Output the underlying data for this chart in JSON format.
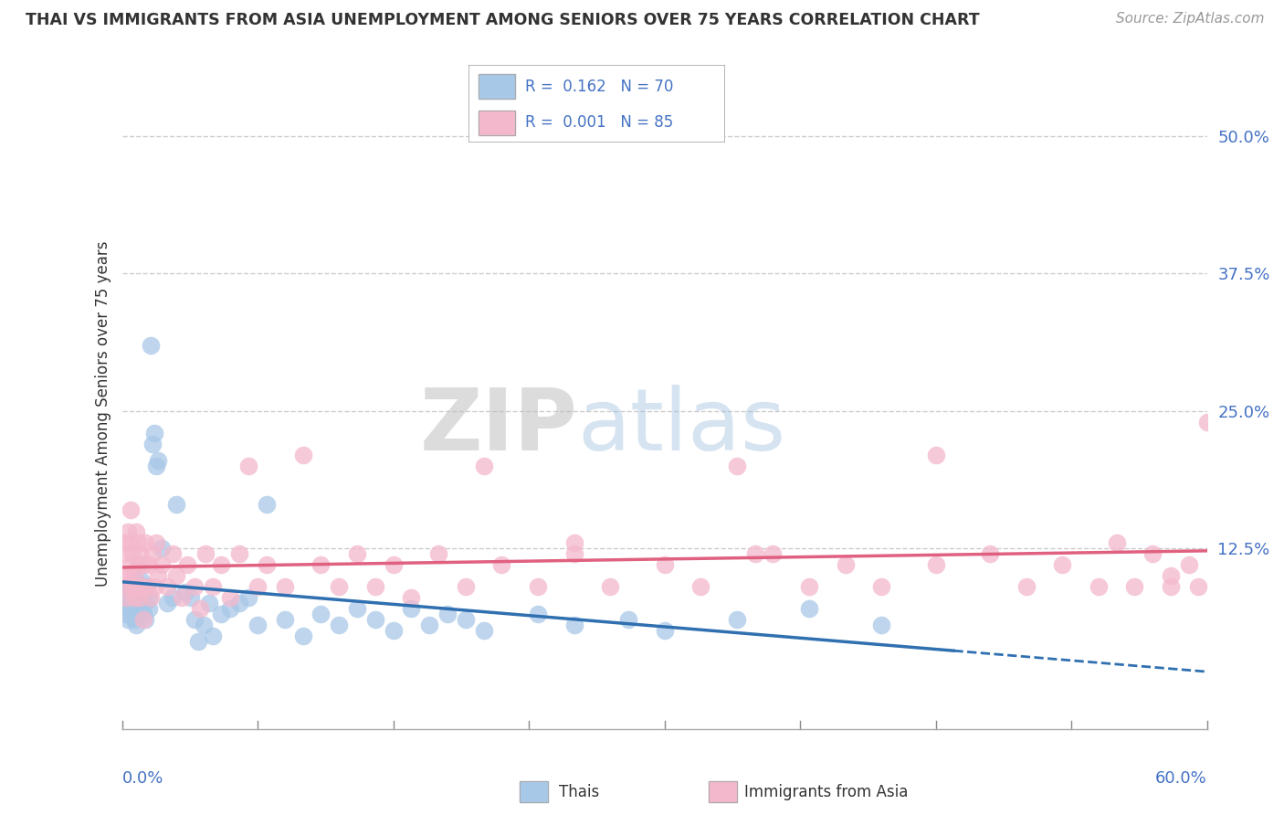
{
  "title": "THAI VS IMMIGRANTS FROM ASIA UNEMPLOYMENT AMONG SENIORS OVER 75 YEARS CORRELATION CHART",
  "source": "Source: ZipAtlas.com",
  "ylabel": "Unemployment Among Seniors over 75 years",
  "xlim": [
    0.0,
    0.6
  ],
  "ylim": [
    -0.04,
    0.535
  ],
  "color_thai": "#A8C8E8",
  "color_immigrants": "#F4B8CC",
  "color_thai_line": "#3070B0",
  "color_immigrants_line": "#E06080",
  "color_text_blue": "#4472C4",
  "color_text_dark": "#333333",
  "color_grid": "#CCCCCC",
  "color_source": "#999999",
  "watermark_zip": "ZIP",
  "watermark_atlas": "atlas",
  "thai_x": [
    0.001,
    0.002,
    0.002,
    0.003,
    0.003,
    0.004,
    0.004,
    0.005,
    0.005,
    0.006,
    0.006,
    0.007,
    0.007,
    0.008,
    0.008,
    0.008,
    0.009,
    0.009,
    0.01,
    0.01,
    0.01,
    0.011,
    0.012,
    0.012,
    0.013,
    0.013,
    0.014,
    0.015,
    0.015,
    0.016,
    0.017,
    0.018,
    0.019,
    0.02,
    0.022,
    0.025,
    0.028,
    0.03,
    0.035,
    0.038,
    0.04,
    0.042,
    0.045,
    0.048,
    0.05,
    0.055,
    0.06,
    0.065,
    0.07,
    0.075,
    0.08,
    0.09,
    0.1,
    0.11,
    0.12,
    0.13,
    0.14,
    0.15,
    0.16,
    0.17,
    0.18,
    0.19,
    0.2,
    0.23,
    0.25,
    0.28,
    0.3,
    0.34,
    0.38,
    0.42
  ],
  "thai_y": [
    0.075,
    0.065,
    0.085,
    0.06,
    0.08,
    0.07,
    0.09,
    0.075,
    0.085,
    0.065,
    0.08,
    0.06,
    0.09,
    0.055,
    0.075,
    0.095,
    0.065,
    0.085,
    0.07,
    0.11,
    0.08,
    0.095,
    0.065,
    0.085,
    0.075,
    0.06,
    0.09,
    0.07,
    0.08,
    0.31,
    0.22,
    0.23,
    0.2,
    0.205,
    0.125,
    0.075,
    0.08,
    0.165,
    0.085,
    0.08,
    0.06,
    0.04,
    0.055,
    0.075,
    0.045,
    0.065,
    0.07,
    0.075,
    0.08,
    0.055,
    0.165,
    0.06,
    0.045,
    0.065,
    0.055,
    0.07,
    0.06,
    0.05,
    0.07,
    0.055,
    0.065,
    0.06,
    0.05,
    0.065,
    0.055,
    0.06,
    0.05,
    0.06,
    0.07,
    0.055
  ],
  "immigrants_x": [
    0.001,
    0.001,
    0.002,
    0.002,
    0.003,
    0.003,
    0.004,
    0.004,
    0.005,
    0.005,
    0.006,
    0.006,
    0.007,
    0.007,
    0.008,
    0.008,
    0.009,
    0.009,
    0.01,
    0.01,
    0.011,
    0.012,
    0.012,
    0.013,
    0.014,
    0.015,
    0.016,
    0.017,
    0.018,
    0.019,
    0.02,
    0.022,
    0.025,
    0.028,
    0.03,
    0.033,
    0.036,
    0.04,
    0.043,
    0.046,
    0.05,
    0.055,
    0.06,
    0.065,
    0.07,
    0.075,
    0.08,
    0.09,
    0.1,
    0.11,
    0.12,
    0.13,
    0.14,
    0.15,
    0.16,
    0.175,
    0.19,
    0.21,
    0.23,
    0.25,
    0.27,
    0.3,
    0.32,
    0.34,
    0.36,
    0.38,
    0.4,
    0.42,
    0.45,
    0.48,
    0.5,
    0.52,
    0.54,
    0.55,
    0.56,
    0.57,
    0.58,
    0.59,
    0.595,
    0.6,
    0.2,
    0.25,
    0.35,
    0.45,
    0.58
  ],
  "immigrants_y": [
    0.1,
    0.13,
    0.12,
    0.08,
    0.14,
    0.1,
    0.09,
    0.13,
    0.11,
    0.16,
    0.09,
    0.12,
    0.1,
    0.08,
    0.14,
    0.09,
    0.11,
    0.13,
    0.08,
    0.12,
    0.09,
    0.11,
    0.06,
    0.13,
    0.09,
    0.11,
    0.08,
    0.12,
    0.09,
    0.13,
    0.1,
    0.11,
    0.09,
    0.12,
    0.1,
    0.08,
    0.11,
    0.09,
    0.07,
    0.12,
    0.09,
    0.11,
    0.08,
    0.12,
    0.2,
    0.09,
    0.11,
    0.09,
    0.21,
    0.11,
    0.09,
    0.12,
    0.09,
    0.11,
    0.08,
    0.12,
    0.09,
    0.11,
    0.09,
    0.12,
    0.09,
    0.11,
    0.09,
    0.2,
    0.12,
    0.09,
    0.11,
    0.09,
    0.21,
    0.12,
    0.09,
    0.11,
    0.09,
    0.13,
    0.09,
    0.12,
    0.09,
    0.11,
    0.09,
    0.24,
    0.2,
    0.13,
    0.12,
    0.11,
    0.1
  ]
}
